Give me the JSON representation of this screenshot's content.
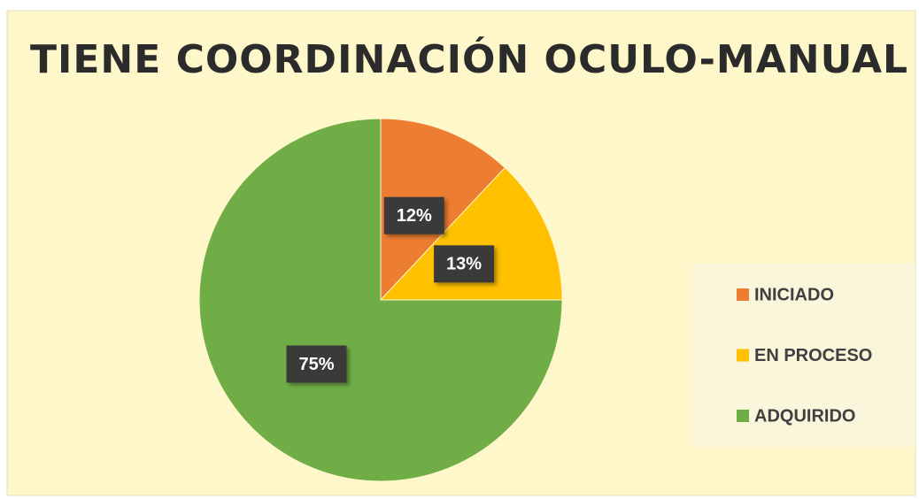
{
  "chart_data": {
    "type": "pie",
    "title": "TIENE COORDINACIÓN OCULO-MANUAL",
    "categories": [
      "INICIADO",
      "EN PROCESO",
      "ADQUIRIDO"
    ],
    "values": [
      12,
      13,
      75
    ],
    "value_labels": [
      "12%",
      "13%",
      "75%"
    ],
    "colors": [
      "#ed7d31",
      "#ffc000",
      "#70ad47"
    ],
    "legend": "right"
  }
}
